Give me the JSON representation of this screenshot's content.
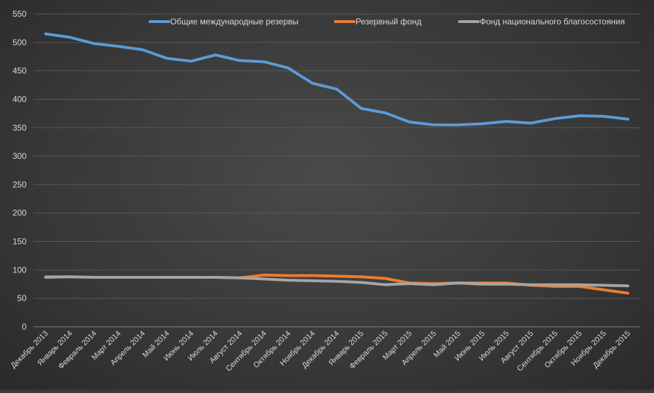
{
  "chart_data": {
    "type": "line",
    "title": "",
    "xlabel": "",
    "ylabel": "",
    "ylim": [
      0,
      550
    ],
    "y_ticks": [
      0,
      50,
      100,
      150,
      200,
      250,
      300,
      350,
      400,
      450,
      500,
      550
    ],
    "grid": true,
    "legend_position": "top",
    "categories": [
      "Декабрь 2013",
      "Январь 2014",
      "Февраль 2014",
      "Март 2014",
      "Апрель 2014",
      "Май 2014",
      "Июнь 2014",
      "Июль 2014",
      "Август 2014",
      "Сентябрь 2014",
      "Октябрь 2014",
      "Ноябрь 2014",
      "Декабрь 2014",
      "Январь 2015",
      "Февраль 2015",
      "Март 2015",
      "Апрель 2015",
      "Май 2015",
      "Июнь 2015",
      "Июль 2015",
      "Август 2015",
      "Сентябрь 2015",
      "Октябрь 2015",
      "Ноябрь 2015",
      "Декабрь 2015"
    ],
    "series": [
      {
        "name": "Общие международные резервы",
        "color": "#5b9bd5",
        "values": [
          515,
          509,
          498,
          493,
          487,
          472,
          467,
          478,
          468,
          466,
          455,
          428,
          418,
          384,
          376,
          360,
          355,
          355,
          357,
          361,
          358,
          366,
          371,
          370,
          365
        ]
      },
      {
        "name": "Резервный фонд",
        "color": "#ed7d31",
        "values": [
          88,
          88,
          87,
          87,
          87,
          87,
          87,
          87,
          86,
          91,
          90,
          90,
          89,
          88,
          85,
          77,
          76,
          77,
          77,
          77,
          73,
          71,
          71,
          65,
          59
        ]
      },
      {
        "name": "Фонд национального благосостояния",
        "color": "#a5a5a5",
        "values": [
          87,
          88,
          87,
          87,
          87,
          87,
          87,
          87,
          86,
          84,
          82,
          81,
          80,
          78,
          74,
          76,
          74,
          77,
          75,
          75,
          74,
          74,
          74,
          73,
          72
        ]
      }
    ]
  }
}
